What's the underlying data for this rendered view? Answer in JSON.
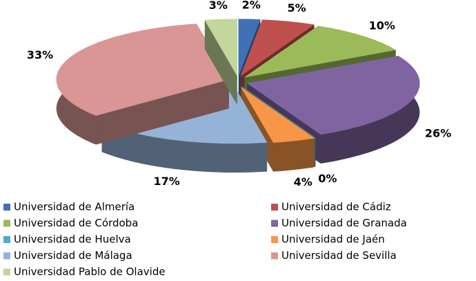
{
  "chart_data": {
    "type": "pie",
    "categories": [
      "Universidad de Almería",
      "Universidad de Cádiz",
      "Universidad de Córdoba",
      "Universidad de Granada",
      "Universidad de Huelva",
      "Universidad de Jaén",
      "Universidad de Málaga",
      "Universidad de Sevilla",
      "Universidad Pablo de Olavide"
    ],
    "values": [
      2,
      5,
      10,
      26,
      0,
      4,
      17,
      33,
      3
    ],
    "value_labels": [
      "2%",
      "5%",
      "10%",
      "26%",
      "0%",
      "4%",
      "17%",
      "33%",
      "3%"
    ],
    "colors": [
      "#3f72b5",
      "#c0504d",
      "#9bbb59",
      "#8064a2",
      "#4bacc6",
      "#f79646",
      "#95b3d7",
      "#d99694",
      "#c3d69b"
    ],
    "legend": "bottom"
  }
}
